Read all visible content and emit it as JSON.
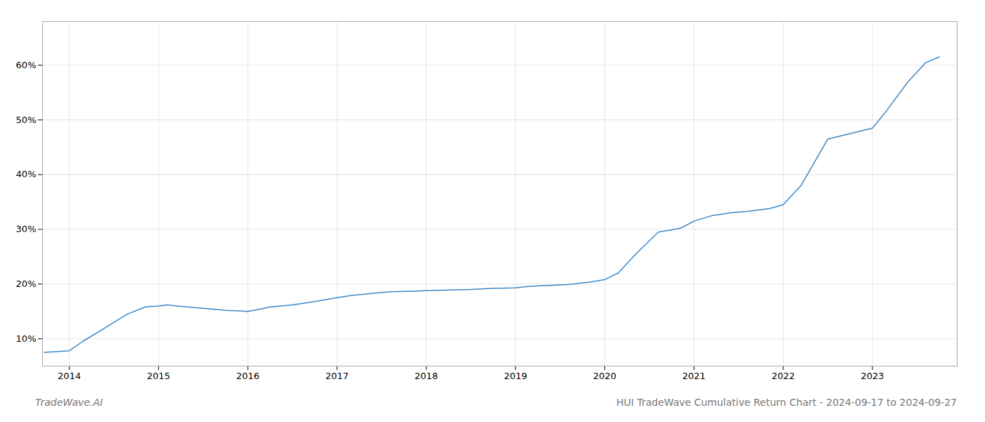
{
  "chart_data": {
    "type": "line",
    "title": "HUI TradeWave Cumulative Return Chart - 2024-09-17 to 2024-09-27",
    "annotations": [
      "TradeWave.AI"
    ],
    "color": "#3a87c8",
    "x": [
      2013.72,
      2014.0,
      2014.15,
      2014.4,
      2014.65,
      2014.85,
      2015.0,
      2015.1,
      2015.2,
      2015.4,
      2015.6,
      2015.75,
      2015.9,
      2016.0,
      2016.1,
      2016.25,
      2016.5,
      2016.75,
      2017.0,
      2017.15,
      2017.4,
      2017.6,
      2017.85,
      2018.0,
      2018.2,
      2018.5,
      2018.75,
      2019.0,
      2019.1,
      2019.3,
      2019.6,
      2019.85,
      2020.0,
      2020.15,
      2020.35,
      2020.6,
      2020.85,
      2021.0,
      2021.2,
      2021.4,
      2021.6,
      2021.85,
      2022.0,
      2022.2,
      2022.5,
      2022.75,
      2023.0,
      2023.15,
      2023.4,
      2023.6,
      2023.75
    ],
    "values": [
      7.5,
      7.8,
      9.5,
      12.0,
      14.5,
      15.8,
      16.0,
      16.2,
      16.0,
      15.7,
      15.4,
      15.2,
      15.1,
      15.0,
      15.3,
      15.8,
      16.2,
      16.8,
      17.5,
      17.9,
      18.3,
      18.6,
      18.7,
      18.8,
      18.9,
      19.0,
      19.2,
      19.3,
      19.5,
      19.7,
      19.9,
      20.4,
      20.8,
      22.0,
      25.5,
      29.5,
      30.2,
      31.5,
      32.5,
      33.0,
      33.3,
      33.8,
      34.5,
      38.0,
      46.5,
      47.5,
      48.5,
      51.5,
      57.0,
      60.5,
      61.5
    ],
    "xlim": [
      2013.7,
      2023.95
    ],
    "xticks": [
      2014,
      2015,
      2016,
      2017,
      2018,
      2019,
      2020,
      2021,
      2022,
      2023
    ],
    "ylim": [
      5,
      68
    ],
    "yticks": [
      {
        "value": 10,
        "label": "10%"
      },
      {
        "value": 20,
        "label": "20%"
      },
      {
        "value": 30,
        "label": "30%"
      },
      {
        "value": 40,
        "label": "40%"
      },
      {
        "value": 50,
        "label": "50%"
      },
      {
        "value": 60,
        "label": "60%"
      }
    ],
    "grid": true
  }
}
